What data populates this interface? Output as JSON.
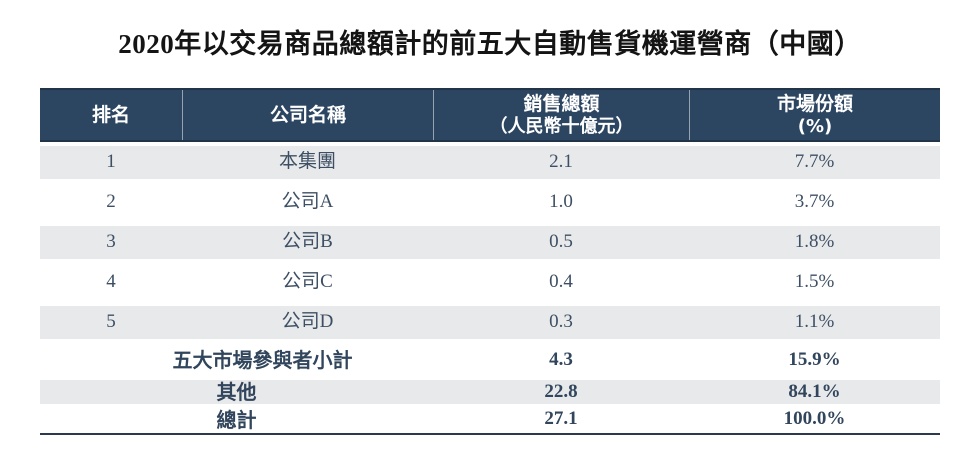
{
  "title": "2020年以交易商品總額計的前五大自動售貨機運營商（中國）",
  "table": {
    "columns": {
      "rank": "排名",
      "company": "公司名稱",
      "sales_line1": "銷售總額",
      "sales_line2": "（人民幣十億元）",
      "share_line1": "市場份額",
      "share_line2": "(%)"
    },
    "rows": [
      {
        "rank": "1",
        "company": "本集團",
        "sales": "2.1",
        "share": "7.7%"
      },
      {
        "rank": "2",
        "company": "公司A",
        "sales": "1.0",
        "share": "3.7%"
      },
      {
        "rank": "3",
        "company": "公司B",
        "sales": "0.5",
        "share": "1.8%"
      },
      {
        "rank": "4",
        "company": "公司C",
        "sales": "0.4",
        "share": "1.5%"
      },
      {
        "rank": "5",
        "company": "公司D",
        "sales": "0.3",
        "share": "1.1%"
      }
    ],
    "summary": [
      {
        "label": "五大市場參與者小計",
        "sales": "4.3",
        "share": "15.9%"
      },
      {
        "label": "其他",
        "sales": "22.8",
        "share": "84.1%"
      },
      {
        "label": "總計",
        "sales": "27.1",
        "share": "100.0%"
      }
    ]
  },
  "colors": {
    "header_background": "#2c4662",
    "header_border": "#223447",
    "header_text": "#ffffff",
    "row_alt_background": "#e8e9ea",
    "body_text": "#3d4f64",
    "summary_text": "#31455c",
    "table_bottom_border": "#2b3b4d",
    "title_text": "#141414",
    "page_background": "#ffffff"
  }
}
